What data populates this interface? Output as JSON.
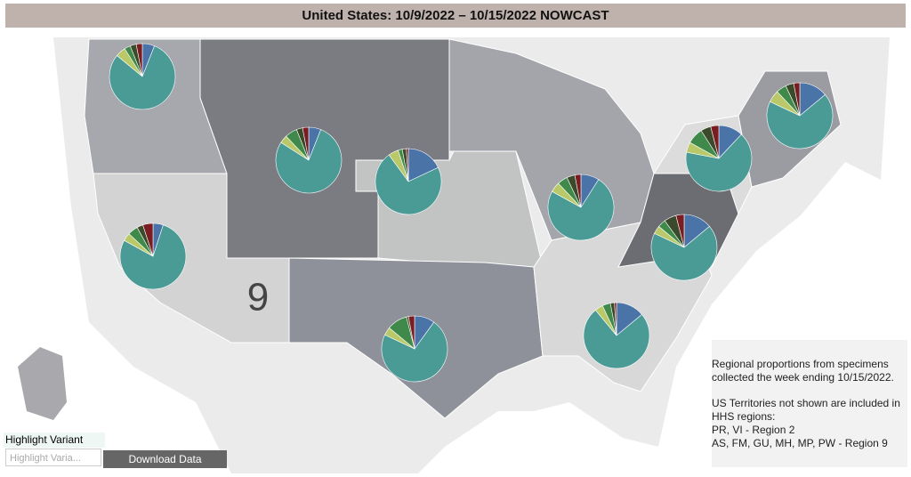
{
  "header": {
    "title": "United States: 10/9/2022 – 10/15/2022 NOWCAST"
  },
  "map": {
    "region_label": "9"
  },
  "chart_data": [
    {
      "type": "pie",
      "values": [
        6,
        80,
        5,
        3,
        3,
        3
      ],
      "colors": [
        "#4a74a8",
        "#4a9a96",
        "#b9c96a",
        "#3f8a4a",
        "#3b4a2a",
        "#7a1d22"
      ]
    },
    {
      "type": "pie",
      "values": [
        6,
        78,
        4,
        6,
        3,
        3
      ],
      "colors": [
        "#4a74a8",
        "#4a9a96",
        "#b9c96a",
        "#3f8a4a",
        "#3b4a2a",
        "#7a1d22"
      ]
    },
    {
      "type": "pie",
      "values": [
        18,
        72,
        5,
        2,
        2,
        1
      ],
      "colors": [
        "#4a74a8",
        "#4a9a96",
        "#b9c96a",
        "#3f8a4a",
        "#3b4a2a",
        "#7a1d22"
      ]
    },
    {
      "type": "pie",
      "values": [
        5,
        78,
        4,
        5,
        3,
        5
      ],
      "colors": [
        "#4a74a8",
        "#4a9a96",
        "#b9c96a",
        "#3f8a4a",
        "#3b4a2a",
        "#7a1d22"
      ]
    },
    {
      "type": "pie",
      "values": [
        9,
        74,
        5,
        5,
        4,
        3
      ],
      "colors": [
        "#4a74a8",
        "#4a9a96",
        "#b9c96a",
        "#3f8a4a",
        "#3b4a2a",
        "#7a1d22"
      ]
    },
    {
      "type": "pie",
      "values": [
        14,
        68,
        4,
        4,
        6,
        4
      ],
      "colors": [
        "#4a74a8",
        "#4a9a96",
        "#b9c96a",
        "#3f8a4a",
        "#3b4a2a",
        "#7a1d22"
      ]
    },
    {
      "type": "pie",
      "values": [
        12,
        66,
        5,
        8,
        5,
        4
      ],
      "colors": [
        "#4a74a8",
        "#4a9a96",
        "#b9c96a",
        "#3f8a4a",
        "#3b4a2a",
        "#7a1d22"
      ]
    },
    {
      "type": "pie",
      "values": [
        14,
        68,
        6,
        5,
        4,
        3
      ],
      "colors": [
        "#4a74a8",
        "#4a9a96",
        "#b9c96a",
        "#3f8a4a",
        "#3b4a2a",
        "#7a1d22"
      ]
    },
    {
      "type": "pie",
      "values": [
        10,
        72,
        4,
        10,
        1,
        3
      ],
      "colors": [
        "#4a74a8",
        "#4a9a96",
        "#b9c96a",
        "#3f8a4a",
        "#3b4a2a",
        "#7a1d22"
      ]
    },
    {
      "type": "pie",
      "values": [
        14,
        75,
        4,
        4,
        2,
        1
      ],
      "colors": [
        "#4a74a8",
        "#4a9a96",
        "#b9c96a",
        "#3f8a4a",
        "#3b4a2a",
        "#7a1d22"
      ]
    }
  ],
  "note": {
    "paragraphs": [
      [
        "Regional proportions from specimens",
        "collected the week ending 10/15/2022."
      ],
      [
        "US Territories not shown are included in",
        "HHS regions:",
        "PR, VI - Region 2",
        "AS, FM, GU, MH, MP, PW - Region 9"
      ]
    ]
  },
  "controls": {
    "highlight_label": "Highlight Variant",
    "highlight_placeholder": "Highlight Varia...",
    "download_button": "Download Data"
  }
}
